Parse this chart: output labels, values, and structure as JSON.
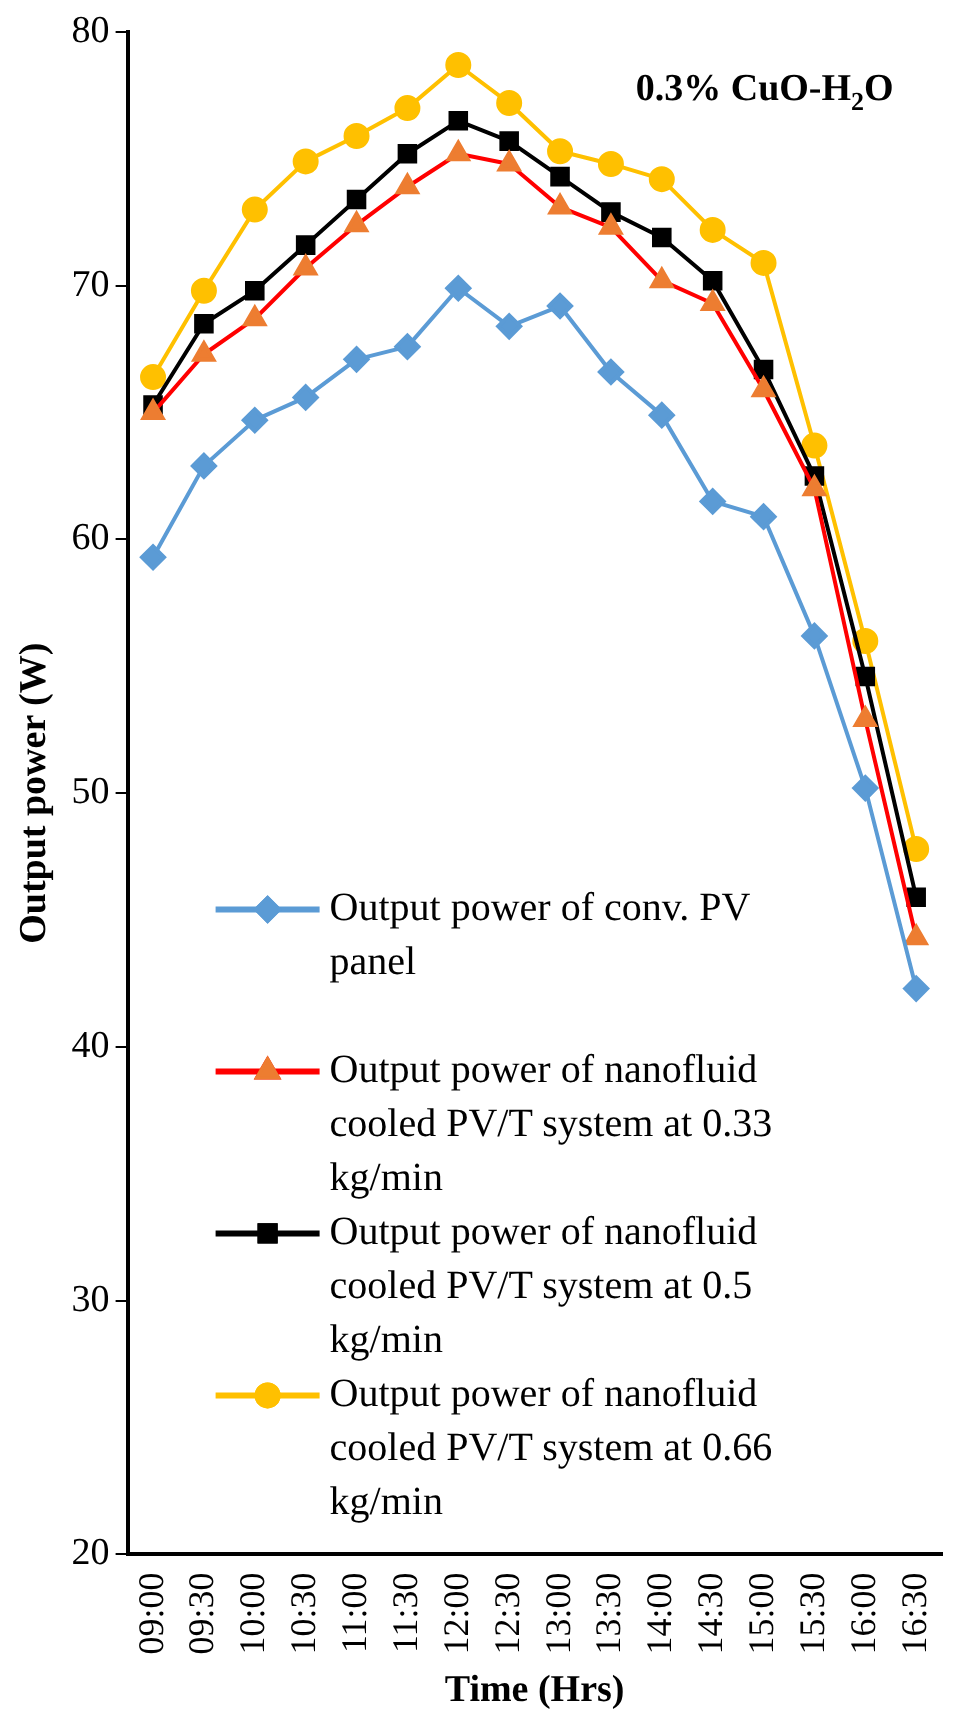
{
  "chart_data": {
    "type": "line",
    "title": "0.3% CuO-H$_{2}$O",
    "xlabel": "Time (Hrs)",
    "ylabel": "Output power (W)",
    "categories": [
      "09:00",
      "09:30",
      "10:00",
      "10:30",
      "11:00",
      "11:30",
      "12:00",
      "12:30",
      "13:00",
      "13:30",
      "14:00",
      "14:30",
      "15:00",
      "15:30",
      "16:00",
      "16:30"
    ],
    "ylim": [
      20,
      80
    ],
    "yticks": [
      20,
      30,
      40,
      50,
      60,
      70,
      80
    ],
    "grid": false,
    "legend": "bottom left",
    "line_style": "solid",
    "series": [
      {
        "name": "Output power of conv. PV panel",
        "color": "#5b9bd5",
        "marker": "diamond",
        "values": [
          59.3,
          62.9,
          64.7,
          65.6,
          67.1,
          67.6,
          69.9,
          68.4,
          69.2,
          66.6,
          64.9,
          61.5,
          60.9,
          56.2,
          50.2,
          42.3
        ]
      },
      {
        "name": "Output power of nanofluid cooled PV/T system at 0.33 kg/min",
        "color": "#ff0000",
        "colors": [
          "#ed7d31",
          "#ed7d31",
          "#ed7d31",
          "#ed7d31",
          "#ed7d31",
          "#ed7d31",
          "#ed7d31",
          "#ed7d31",
          "#ed7d31",
          "#ed7d31",
          "#ed7d31",
          "#ed7d31",
          "#ed7d31",
          "#ed7d31",
          "#ed7d31",
          "#ed7d31"
        ],
        "marker": "triangle",
        "values": [
          65.0,
          67.3,
          68.7,
          70.7,
          72.4,
          73.9,
          75.2,
          74.8,
          73.1,
          72.3,
          70.2,
          69.3,
          65.9,
          62.0,
          52.9,
          44.3
        ]
      },
      {
        "name": "Output power of nanofluid cooled PV/T system at 0.5 kg/min",
        "color": "#000000",
        "marker": "square",
        "values": [
          65.3,
          68.5,
          69.8,
          71.6,
          73.4,
          75.2,
          76.5,
          75.7,
          74.3,
          72.9,
          71.9,
          70.2,
          66.7,
          62.5,
          54.6,
          45.9
        ]
      },
      {
        "name": "Output power of nanofluid cooled PV/T system at 0.66 kg/min",
        "color": "#ffc000",
        "marker": "circle",
        "values": [
          66.4,
          69.8,
          73.0,
          74.9,
          75.9,
          77.0,
          78.7,
          77.2,
          75.3,
          74.8,
          74.2,
          72.2,
          70.9,
          63.7,
          56.0,
          47.8
        ]
      }
    ]
  }
}
